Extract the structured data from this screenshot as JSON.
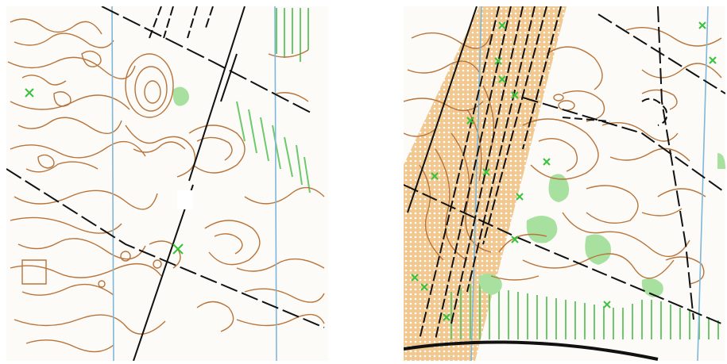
{
  "maps": [
    {
      "id": "left-orienteering-map",
      "terrain": "dense-contours-open-land"
    },
    {
      "id": "right-orienteering-map",
      "terrain": "yellow-dotted-strip-with-tracks"
    }
  ],
  "colors": {
    "contour": "#b8743a",
    "magnetic_north_line": "#7fb7d8",
    "track": "#111111",
    "vegetation_symbol": "#39c23c",
    "green_patch": "#a8e0a0",
    "green_stripes": "#6cc96c",
    "rough_open": "#f0c890",
    "background": "#fcfbf8"
  },
  "symbols": [
    "contour-lines",
    "magnetic-north-lines",
    "dashed-tracks",
    "vegetation-crosses",
    "green-vegetation",
    "yellow-rough-open"
  ]
}
